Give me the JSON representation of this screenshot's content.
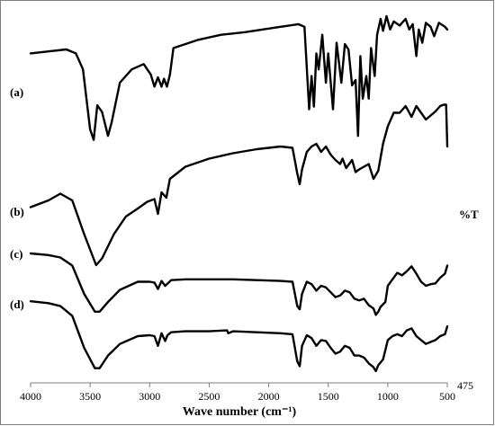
{
  "chart_data": {
    "type": "line",
    "xlabel": "Wave number (cm⁻¹)",
    "ylabel": "%T",
    "x_ticks": [
      4000,
      3500,
      3000,
      2500,
      2000,
      1500,
      1000,
      500
    ],
    "xlim": [
      4000,
      500
    ],
    "x_reversed": true,
    "corner_label": "475",
    "series": [
      {
        "name": "(a)",
        "points": [
          [
            4000,
            0.72
          ],
          [
            3850,
            0.735
          ],
          [
            3700,
            0.75
          ],
          [
            3620,
            0.72
          ],
          [
            3560,
            0.6
          ],
          [
            3500,
            0.15
          ],
          [
            3470,
            0.07
          ],
          [
            3440,
            0.33
          ],
          [
            3400,
            0.28
          ],
          [
            3350,
            0.1
          ],
          [
            3320,
            0.2
          ],
          [
            3250,
            0.5
          ],
          [
            3150,
            0.6
          ],
          [
            3050,
            0.64
          ],
          [
            2990,
            0.56
          ],
          [
            2960,
            0.47
          ],
          [
            2930,
            0.54
          ],
          [
            2900,
            0.47
          ],
          [
            2880,
            0.53
          ],
          [
            2855,
            0.47
          ],
          [
            2830,
            0.56
          ],
          [
            2800,
            0.76
          ],
          [
            2600,
            0.82
          ],
          [
            2400,
            0.86
          ],
          [
            2200,
            0.88
          ],
          [
            1900,
            0.92
          ],
          [
            1750,
            0.94
          ],
          [
            1700,
            0.92
          ],
          [
            1660,
            0.3
          ],
          [
            1640,
            0.55
          ],
          [
            1620,
            0.32
          ],
          [
            1600,
            0.72
          ],
          [
            1580,
            0.6
          ],
          [
            1550,
            0.86
          ],
          [
            1520,
            0.5
          ],
          [
            1500,
            0.72
          ],
          [
            1460,
            0.3
          ],
          [
            1430,
            0.8
          ],
          [
            1390,
            0.5
          ],
          [
            1360,
            0.79
          ],
          [
            1330,
            0.75
          ],
          [
            1300,
            0.48
          ],
          [
            1270,
            0.52
          ],
          [
            1250,
            0.1
          ],
          [
            1230,
            0.7
          ],
          [
            1210,
            0.38
          ],
          [
            1180,
            0.55
          ],
          [
            1160,
            0.38
          ],
          [
            1140,
            0.76
          ],
          [
            1110,
            0.55
          ],
          [
            1090,
            0.86
          ],
          [
            1060,
            0.98
          ],
          [
            1040,
            0.89
          ],
          [
            1010,
            1.0
          ],
          [
            980,
            0.9
          ],
          [
            950,
            0.96
          ],
          [
            900,
            0.93
          ],
          [
            850,
            0.98
          ],
          [
            820,
            0.9
          ],
          [
            790,
            0.94
          ],
          [
            760,
            0.7
          ],
          [
            740,
            0.9
          ],
          [
            710,
            0.8
          ],
          [
            680,
            0.95
          ],
          [
            640,
            0.92
          ],
          [
            610,
            0.85
          ],
          [
            570,
            0.95
          ],
          [
            520,
            0.92
          ],
          [
            500,
            0.9
          ]
        ]
      },
      {
        "name": "(b)",
        "points": [
          [
            4000,
            0.05
          ],
          [
            3850,
            0.1
          ],
          [
            3750,
            0.15
          ],
          [
            3650,
            0.1
          ],
          [
            3550,
            -0.15
          ],
          [
            3450,
            -0.38
          ],
          [
            3400,
            -0.33
          ],
          [
            3300,
            -0.15
          ],
          [
            3200,
            -0.02
          ],
          [
            3100,
            0.04
          ],
          [
            3020,
            0.09
          ],
          [
            2960,
            0.11
          ],
          [
            2930,
            0.0
          ],
          [
            2900,
            0.16
          ],
          [
            2860,
            0.12
          ],
          [
            2830,
            0.26
          ],
          [
            2700,
            0.35
          ],
          [
            2500,
            0.41
          ],
          [
            2300,
            0.45
          ],
          [
            2100,
            0.48
          ],
          [
            1900,
            0.5
          ],
          [
            1800,
            0.49
          ],
          [
            1760,
            0.3
          ],
          [
            1740,
            0.22
          ],
          [
            1720,
            0.33
          ],
          [
            1680,
            0.46
          ],
          [
            1640,
            0.5
          ],
          [
            1600,
            0.52
          ],
          [
            1560,
            0.46
          ],
          [
            1520,
            0.5
          ],
          [
            1480,
            0.44
          ],
          [
            1440,
            0.4
          ],
          [
            1400,
            0.37
          ],
          [
            1380,
            0.41
          ],
          [
            1350,
            0.34
          ],
          [
            1300,
            0.4
          ],
          [
            1270,
            0.31
          ],
          [
            1240,
            0.33
          ],
          [
            1200,
            0.35
          ],
          [
            1160,
            0.37
          ],
          [
            1120,
            0.26
          ],
          [
            1080,
            0.32
          ],
          [
            1040,
            0.52
          ],
          [
            1000,
            0.65
          ],
          [
            950,
            0.75
          ],
          [
            900,
            0.75
          ],
          [
            850,
            0.8
          ],
          [
            800,
            0.72
          ],
          [
            760,
            0.8
          ],
          [
            720,
            0.75
          ],
          [
            680,
            0.7
          ],
          [
            640,
            0.73
          ],
          [
            600,
            0.76
          ],
          [
            560,
            0.8
          ],
          [
            530,
            0.81
          ],
          [
            510,
            0.81
          ],
          [
            500,
            0.5
          ]
        ]
      },
      {
        "name": "(c)",
        "points": [
          [
            4000,
            0.0
          ],
          [
            3850,
            -0.02
          ],
          [
            3750,
            -0.05
          ],
          [
            3650,
            -0.15
          ],
          [
            3550,
            -0.5
          ],
          [
            3460,
            -0.72
          ],
          [
            3420,
            -0.72
          ],
          [
            3350,
            -0.6
          ],
          [
            3250,
            -0.45
          ],
          [
            3100,
            -0.35
          ],
          [
            3000,
            -0.35
          ],
          [
            2960,
            -0.36
          ],
          [
            2930,
            -0.44
          ],
          [
            2900,
            -0.34
          ],
          [
            2870,
            -0.4
          ],
          [
            2840,
            -0.36
          ],
          [
            2820,
            -0.33
          ],
          [
            2700,
            -0.32
          ],
          [
            2500,
            -0.32
          ],
          [
            2300,
            -0.32
          ],
          [
            2100,
            -0.33
          ],
          [
            1900,
            -0.34
          ],
          [
            1800,
            -0.35
          ],
          [
            1760,
            -0.65
          ],
          [
            1740,
            -0.69
          ],
          [
            1720,
            -0.5
          ],
          [
            1680,
            -0.35
          ],
          [
            1640,
            -0.38
          ],
          [
            1600,
            -0.46
          ],
          [
            1560,
            -0.4
          ],
          [
            1520,
            -0.42
          ],
          [
            1480,
            -0.48
          ],
          [
            1440,
            -0.54
          ],
          [
            1400,
            -0.52
          ],
          [
            1360,
            -0.46
          ],
          [
            1320,
            -0.48
          ],
          [
            1280,
            -0.56
          ],
          [
            1240,
            -0.58
          ],
          [
            1200,
            -0.56
          ],
          [
            1160,
            -0.64
          ],
          [
            1120,
            -0.68
          ],
          [
            1100,
            -0.76
          ],
          [
            1080,
            -0.72
          ],
          [
            1060,
            -0.66
          ],
          [
            1020,
            -0.6
          ],
          [
            1000,
            -0.4
          ],
          [
            960,
            -0.32
          ],
          [
            920,
            -0.24
          ],
          [
            880,
            -0.27
          ],
          [
            840,
            -0.22
          ],
          [
            800,
            -0.16
          ],
          [
            760,
            -0.25
          ],
          [
            720,
            -0.35
          ],
          [
            680,
            -0.4
          ],
          [
            640,
            -0.38
          ],
          [
            600,
            -0.37
          ],
          [
            560,
            -0.3
          ],
          [
            520,
            -0.25
          ],
          [
            500,
            -0.15
          ]
        ]
      },
      {
        "name": "(d)",
        "points": [
          [
            4000,
            -0.02
          ],
          [
            3850,
            -0.04
          ],
          [
            3750,
            -0.07
          ],
          [
            3650,
            -0.17
          ],
          [
            3550,
            -0.5
          ],
          [
            3460,
            -0.71
          ],
          [
            3420,
            -0.71
          ],
          [
            3350,
            -0.58
          ],
          [
            3250,
            -0.46
          ],
          [
            3100,
            -0.38
          ],
          [
            3000,
            -0.37
          ],
          [
            2960,
            -0.38
          ],
          [
            2930,
            -0.48
          ],
          [
            2900,
            -0.35
          ],
          [
            2870,
            -0.43
          ],
          [
            2850,
            -0.37
          ],
          [
            2820,
            -0.34
          ],
          [
            2700,
            -0.33
          ],
          [
            2500,
            -0.33
          ],
          [
            2350,
            -0.32
          ],
          [
            2340,
            -0.35
          ],
          [
            2300,
            -0.33
          ],
          [
            2100,
            -0.34
          ],
          [
            1900,
            -0.35
          ],
          [
            1800,
            -0.36
          ],
          [
            1760,
            -0.64
          ],
          [
            1740,
            -0.69
          ],
          [
            1720,
            -0.48
          ],
          [
            1680,
            -0.37
          ],
          [
            1640,
            -0.4
          ],
          [
            1600,
            -0.48
          ],
          [
            1560,
            -0.42
          ],
          [
            1520,
            -0.43
          ],
          [
            1480,
            -0.5
          ],
          [
            1440,
            -0.56
          ],
          [
            1400,
            -0.54
          ],
          [
            1360,
            -0.48
          ],
          [
            1320,
            -0.5
          ],
          [
            1280,
            -0.58
          ],
          [
            1240,
            -0.58
          ],
          [
            1200,
            -0.6
          ],
          [
            1160,
            -0.66
          ],
          [
            1120,
            -0.7
          ],
          [
            1100,
            -0.74
          ],
          [
            1080,
            -0.68
          ],
          [
            1040,
            -0.62
          ],
          [
            1000,
            -0.42
          ],
          [
            960,
            -0.38
          ],
          [
            920,
            -0.36
          ],
          [
            880,
            -0.38
          ],
          [
            840,
            -0.32
          ],
          [
            800,
            -0.3
          ],
          [
            760,
            -0.38
          ],
          [
            720,
            -0.42
          ],
          [
            680,
            -0.46
          ],
          [
            640,
            -0.44
          ],
          [
            600,
            -0.42
          ],
          [
            560,
            -0.38
          ],
          [
            520,
            -0.36
          ],
          [
            500,
            -0.28
          ]
        ]
      }
    ]
  }
}
